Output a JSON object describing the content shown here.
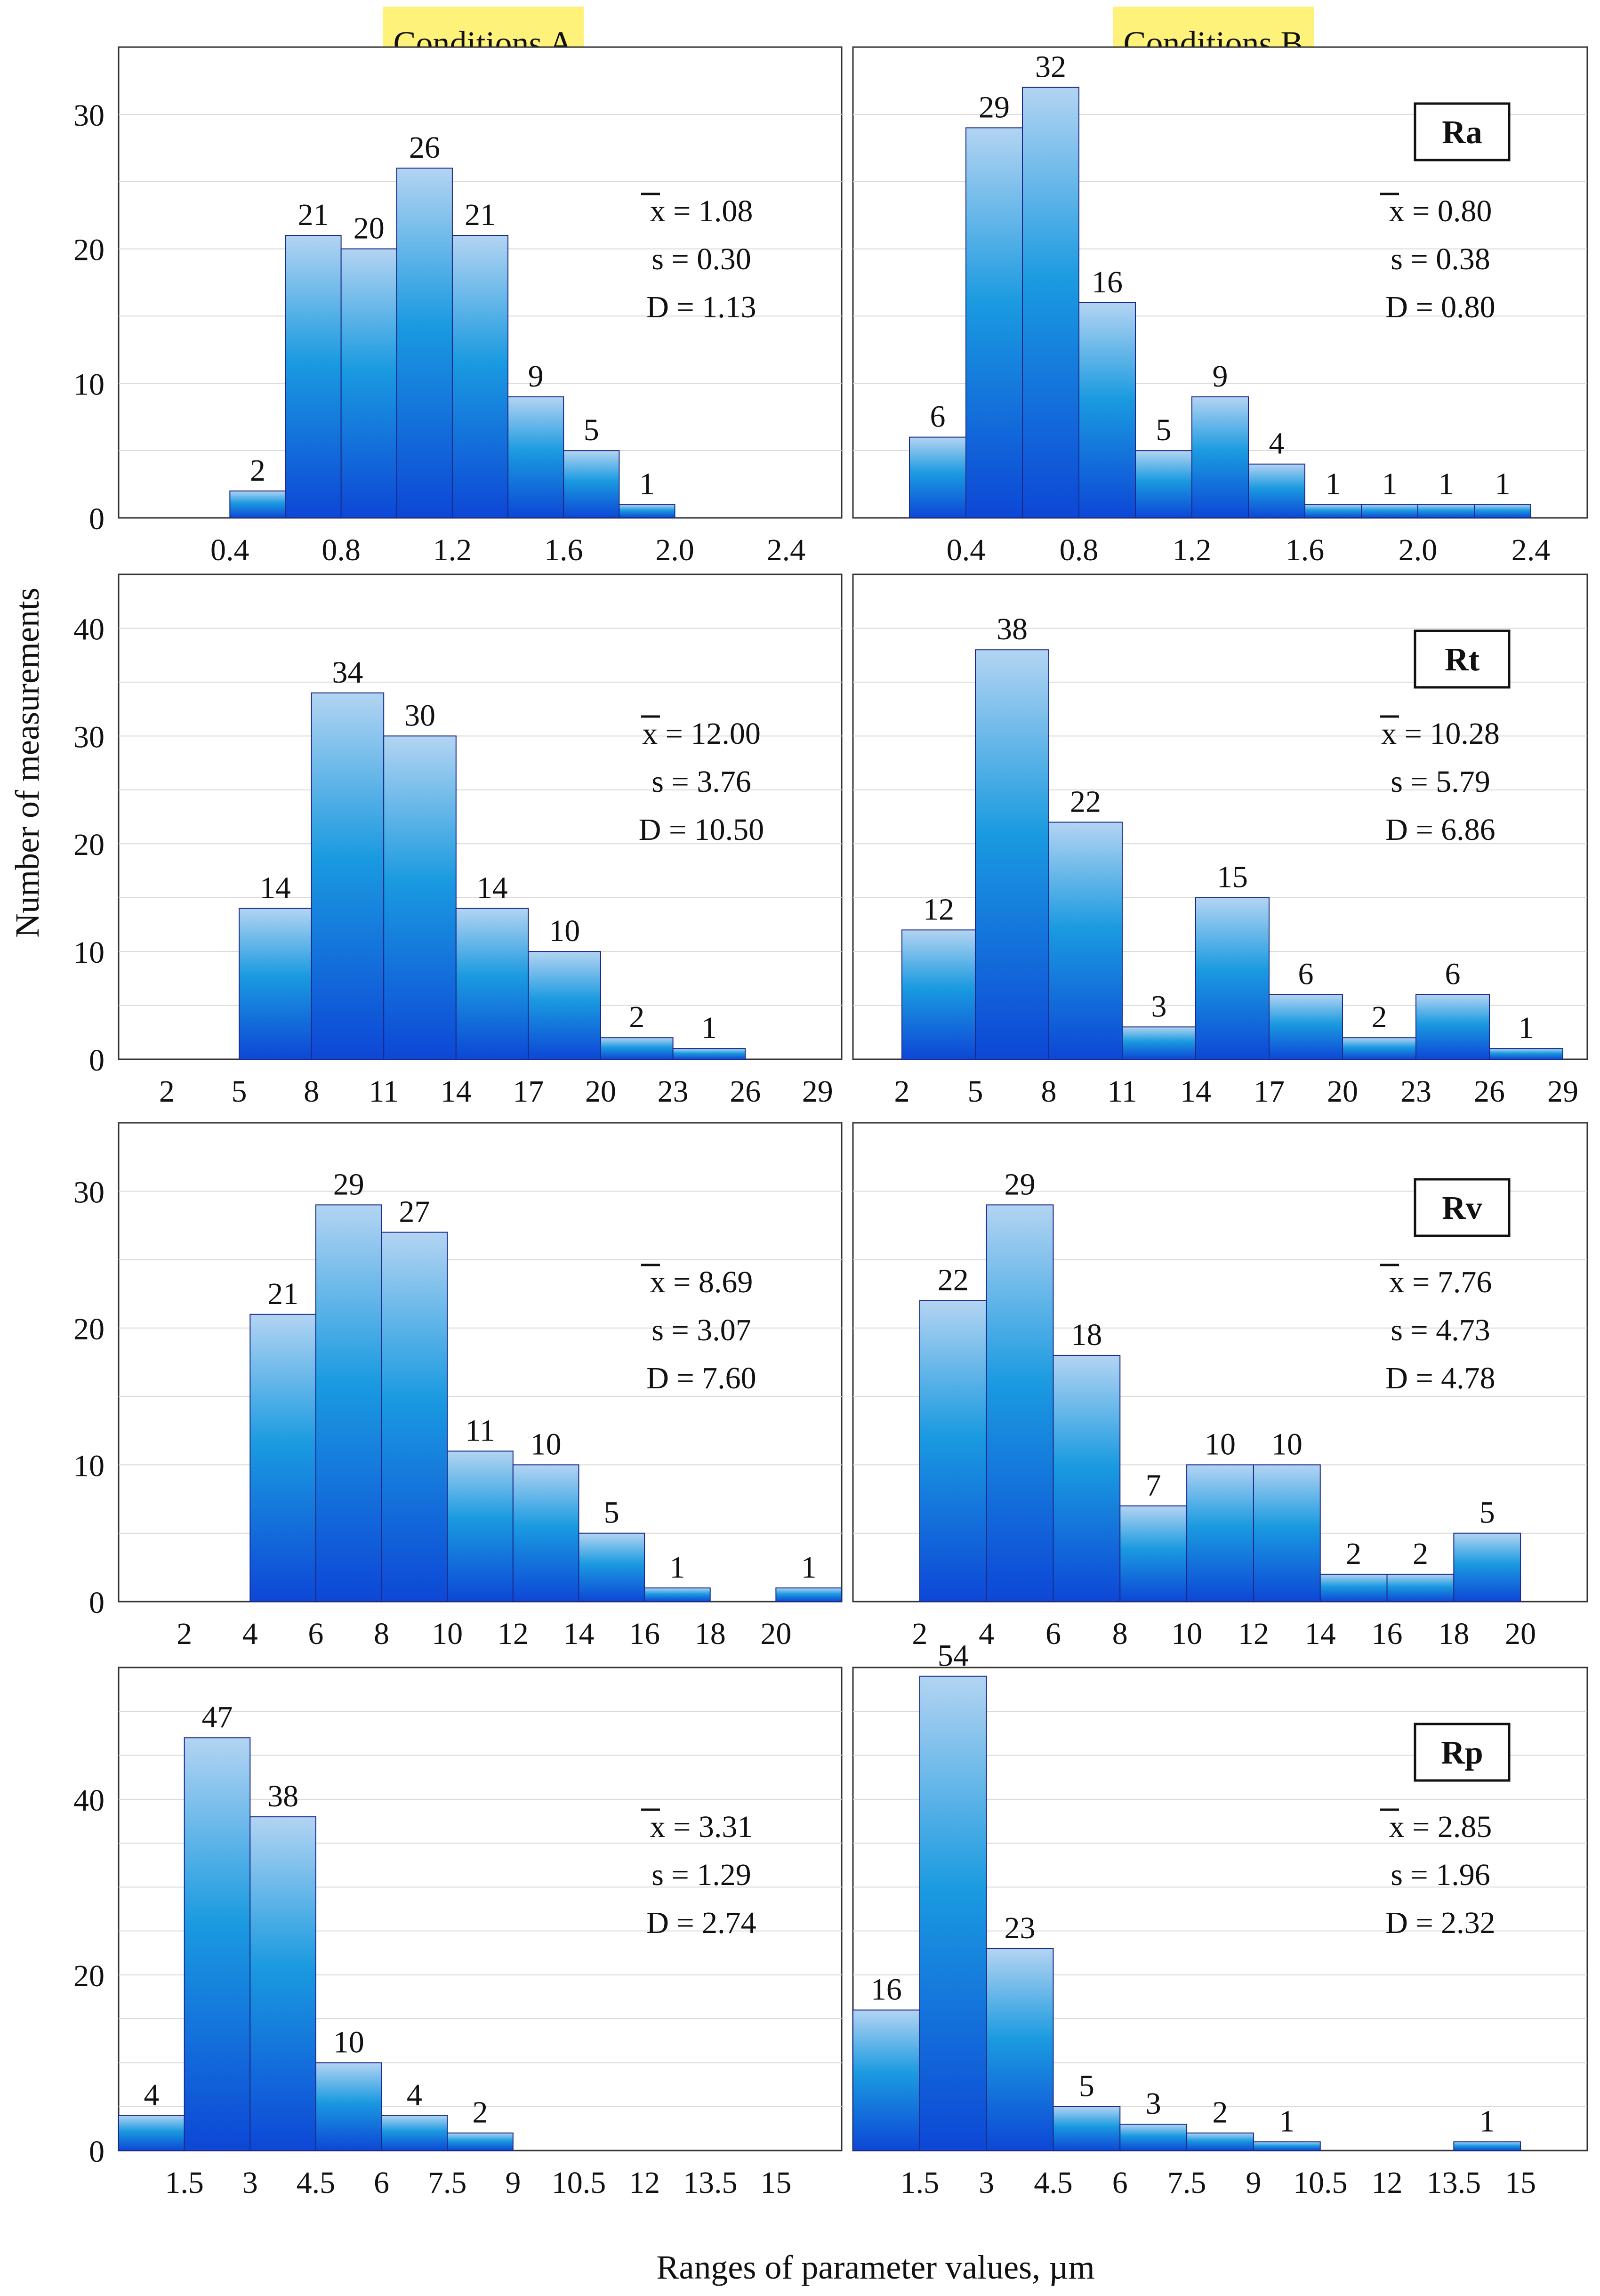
{
  "figure": {
    "ylabel": "Number of measurements",
    "xlabel": "Ranges of parameter values, µm",
    "columns": [
      "Conditions A",
      "Conditions B"
    ],
    "bar_color_top": "#b3d4f2",
    "bar_color_mid": "#1a9ae0",
    "bar_color_bottom": "#0d47d6",
    "header_bg": "#fff27a"
  },
  "chart_data": [
    {
      "type": "bar",
      "row": 0,
      "col": 0,
      "parameter": "Ra",
      "xlim": [
        0,
        2.6
      ],
      "ylim": [
        0,
        35
      ],
      "yticks": [
        0,
        10,
        20,
        30
      ],
      "xticks": [
        "0.4",
        "0.8",
        "1.2",
        "1.6",
        "2.0",
        "2.4"
      ],
      "xtick_values": [
        0.4,
        0.8,
        1.2,
        1.6,
        2.0,
        2.4
      ],
      "bin_edges": [
        0.4,
        0.6,
        0.8,
        1.0,
        1.2,
        1.4,
        1.6,
        1.8,
        2.0
      ],
      "values": [
        2,
        21,
        20,
        26,
        21,
        9,
        5,
        1
      ],
      "stats": {
        "mean": "x = 1.08",
        "s": "s = 0.30",
        "D": "D = 1.13"
      }
    },
    {
      "type": "bar",
      "row": 0,
      "col": 1,
      "parameter": "Ra",
      "xlim": [
        0,
        2.6
      ],
      "ylim": [
        0,
        35
      ],
      "yticks": [
        0,
        10,
        20,
        30
      ],
      "xticks": [
        "0.4",
        "0.8",
        "1.2",
        "1.6",
        "2.0",
        "2.4"
      ],
      "xtick_values": [
        0.4,
        0.8,
        1.2,
        1.6,
        2.0,
        2.4
      ],
      "bin_edges": [
        0.2,
        0.4,
        0.6,
        0.8,
        1.0,
        1.2,
        1.4,
        1.6,
        1.8,
        2.0,
        2.2,
        2.4
      ],
      "values": [
        6,
        29,
        32,
        16,
        5,
        9,
        4,
        1,
        1,
        1,
        1
      ],
      "label_param": "Ra",
      "stats": {
        "mean": "x = 0.80",
        "s": "s = 0.38",
        "D": "D = 0.80"
      }
    },
    {
      "type": "bar",
      "row": 1,
      "col": 0,
      "parameter": "Rt",
      "xlim": [
        0,
        30
      ],
      "ylim": [
        0,
        45
      ],
      "yticks": [
        0,
        10,
        20,
        30,
        40
      ],
      "xticks": [
        "2",
        "5",
        "8",
        "11",
        "14",
        "17",
        "20",
        "23",
        "26",
        "29"
      ],
      "xtick_values": [
        2,
        5,
        8,
        11,
        14,
        17,
        20,
        23,
        26,
        29
      ],
      "bin_edges": [
        5,
        8,
        11,
        14,
        17,
        20,
        23,
        26
      ],
      "values": [
        14,
        34,
        30,
        14,
        10,
        2,
        1
      ],
      "stats": {
        "mean": "x = 12.00",
        "s": "s = 3.76",
        "D": "D = 10.50"
      }
    },
    {
      "type": "bar",
      "row": 1,
      "col": 1,
      "parameter": "Rt",
      "xlim": [
        0,
        30
      ],
      "ylim": [
        0,
        45
      ],
      "yticks": [
        0,
        10,
        20,
        30,
        40
      ],
      "xticks": [
        "2",
        "5",
        "8",
        "11",
        "14",
        "17",
        "20",
        "23",
        "26",
        "29"
      ],
      "xtick_values": [
        2,
        5,
        8,
        11,
        14,
        17,
        20,
        23,
        26,
        29
      ],
      "bin_edges": [
        2,
        5,
        8,
        11,
        14,
        17,
        20,
        23,
        26,
        29
      ],
      "values": [
        12,
        38,
        22,
        3,
        15,
        6,
        2,
        6,
        1
      ],
      "label_param": "Rt",
      "stats": {
        "mean": "x = 10.28",
        "s": "s = 5.79",
        "D": "D = 6.86"
      }
    },
    {
      "type": "bar",
      "row": 2,
      "col": 0,
      "parameter": "Rv",
      "xlim": [
        0,
        22
      ],
      "ylim": [
        0,
        35
      ],
      "yticks": [
        0,
        10,
        20,
        30
      ],
      "xticks": [
        "2",
        "4",
        "6",
        "8",
        "10",
        "12",
        "14",
        "16",
        "18",
        "20"
      ],
      "xtick_values": [
        2,
        4,
        6,
        8,
        10,
        12,
        14,
        16,
        18,
        20
      ],
      "bin_edges": [
        4,
        6,
        8,
        10,
        12,
        14,
        16,
        18,
        20,
        22
      ],
      "values": [
        21,
        29,
        27,
        11,
        10,
        5,
        1,
        0,
        1
      ],
      "hidden_zero_labels": [
        7
      ],
      "stats": {
        "mean": "x = 8.69",
        "s": "s = 3.07",
        "D": "D = 7.60"
      }
    },
    {
      "type": "bar",
      "row": 2,
      "col": 1,
      "parameter": "Rv",
      "xlim": [
        0,
        22
      ],
      "ylim": [
        0,
        35
      ],
      "yticks": [
        0,
        10,
        20,
        30
      ],
      "xticks": [
        "2",
        "4",
        "6",
        "8",
        "10",
        "12",
        "14",
        "16",
        "18",
        "20"
      ],
      "xtick_values": [
        2,
        4,
        6,
        8,
        10,
        12,
        14,
        16,
        18,
        20
      ],
      "bin_edges": [
        2,
        4,
        6,
        8,
        10,
        12,
        14,
        16,
        18,
        20
      ],
      "values": [
        22,
        29,
        18,
        7,
        10,
        10,
        2,
        2,
        5
      ],
      "label_param": "Rv",
      "stats": {
        "mean": "x = 7.76",
        "s": "s = 4.73",
        "D": "D = 4.78"
      }
    },
    {
      "type": "bar",
      "row": 3,
      "col": 0,
      "parameter": "Rp",
      "xlim": [
        0,
        16.5
      ],
      "ylim": [
        0,
        55
      ],
      "yticks": [
        0,
        20,
        40
      ],
      "xticks": [
        "1.5",
        "3",
        "4.5",
        "6",
        "7.5",
        "9",
        "10.5",
        "12",
        "13.5",
        "15"
      ],
      "xtick_values": [
        1.5,
        3,
        4.5,
        6,
        7.5,
        9,
        10.5,
        12,
        13.5,
        15
      ],
      "bin_edges": [
        0,
        1.5,
        3,
        4.5,
        6,
        7.5,
        9
      ],
      "values": [
        4,
        47,
        38,
        10,
        4,
        2
      ],
      "stats": {
        "mean": "x = 3.31",
        "s": "s = 1.29",
        "D": "D = 2.74"
      }
    },
    {
      "type": "bar",
      "row": 3,
      "col": 1,
      "parameter": "Rp",
      "xlim": [
        0,
        16.5
      ],
      "ylim": [
        0,
        55
      ],
      "yticks": [
        0,
        20,
        40
      ],
      "xticks": [
        "1.5",
        "3",
        "4.5",
        "6",
        "7.5",
        "9",
        "10.5",
        "12",
        "13.5",
        "15"
      ],
      "xtick_values": [
        1.5,
        3,
        4.5,
        6,
        7.5,
        9,
        10.5,
        12,
        13.5,
        15
      ],
      "bin_edges": [
        0,
        1.5,
        3,
        4.5,
        6,
        7.5,
        9,
        10.5,
        12,
        13.5,
        15
      ],
      "values": [
        16,
        54,
        23,
        5,
        3,
        2,
        1,
        0,
        0,
        1
      ],
      "hidden_zero_labels": [
        7,
        8
      ],
      "label_param": "Rp",
      "stats": {
        "mean": "x = 2.85",
        "s": "s = 1.96",
        "D": "D = 2.32"
      }
    }
  ]
}
